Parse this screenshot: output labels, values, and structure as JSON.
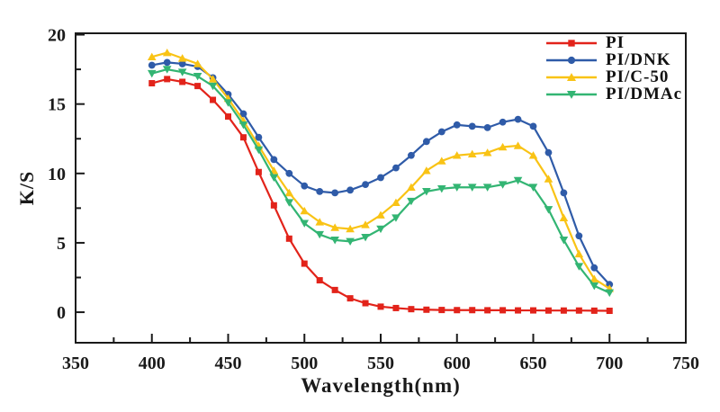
{
  "figure": {
    "background": "#ffffff",
    "axis_color": "#1a1a1a"
  },
  "chart_data": {
    "type": "line",
    "title": "",
    "xlabel": "Wavelength(nm)",
    "ylabel": "K/S",
    "xlim": [
      350,
      750
    ],
    "ylim": [
      -2.2,
      20.1
    ],
    "xticks": [
      350,
      400,
      450,
      500,
      550,
      600,
      650,
      700,
      750
    ],
    "xminor_step": 25,
    "yticks": [
      0,
      5,
      10,
      15,
      20
    ],
    "yminor_step": 2.5,
    "grid": false,
    "legend_position": "upper-right-inside",
    "x": [
      400,
      410,
      420,
      430,
      440,
      450,
      460,
      470,
      480,
      490,
      500,
      510,
      520,
      530,
      540,
      550,
      560,
      570,
      580,
      590,
      600,
      610,
      620,
      630,
      640,
      650,
      660,
      670,
      680,
      690,
      700
    ],
    "series": [
      {
        "name": "PI",
        "color": "#e2231a",
        "marker": "square",
        "values": [
          16.5,
          16.8,
          16.6,
          16.3,
          15.3,
          14.1,
          12.6,
          10.1,
          7.7,
          5.3,
          3.5,
          2.3,
          1.6,
          1.0,
          0.65,
          0.4,
          0.3,
          0.22,
          0.18,
          0.16,
          0.15,
          0.15,
          0.14,
          0.14,
          0.13,
          0.13,
          0.12,
          0.12,
          0.12,
          0.11,
          0.1
        ]
      },
      {
        "name": "PI/DNK",
        "color": "#2f5ba8",
        "marker": "circle",
        "values": [
          17.8,
          18.0,
          17.9,
          17.7,
          16.9,
          15.7,
          14.3,
          12.6,
          11.0,
          10.0,
          9.1,
          8.7,
          8.6,
          8.8,
          9.2,
          9.7,
          10.4,
          11.3,
          12.3,
          13.0,
          13.5,
          13.4,
          13.3,
          13.7,
          13.9,
          13.4,
          11.5,
          8.6,
          5.5,
          3.2,
          2.0
        ]
      },
      {
        "name": "PI/C-50",
        "color": "#f9c315",
        "marker": "triangle-up",
        "values": [
          18.4,
          18.7,
          18.3,
          17.9,
          16.8,
          15.4,
          13.8,
          12.0,
          10.2,
          8.6,
          7.3,
          6.5,
          6.1,
          6.0,
          6.3,
          7.0,
          7.9,
          9.0,
          10.2,
          10.9,
          11.3,
          11.4,
          11.5,
          11.9,
          12.0,
          11.3,
          9.6,
          6.8,
          4.2,
          2.4,
          1.7
        ]
      },
      {
        "name": "PI/DMAc",
        "color": "#33b573",
        "marker": "triangle-down",
        "values": [
          17.2,
          17.5,
          17.3,
          17.0,
          16.3,
          15.1,
          13.5,
          11.7,
          9.7,
          7.9,
          6.4,
          5.6,
          5.2,
          5.1,
          5.4,
          6.0,
          6.8,
          8.0,
          8.7,
          8.9,
          9.0,
          9.0,
          9.0,
          9.2,
          9.5,
          9.0,
          7.4,
          5.2,
          3.3,
          1.9,
          1.4
        ]
      }
    ]
  }
}
